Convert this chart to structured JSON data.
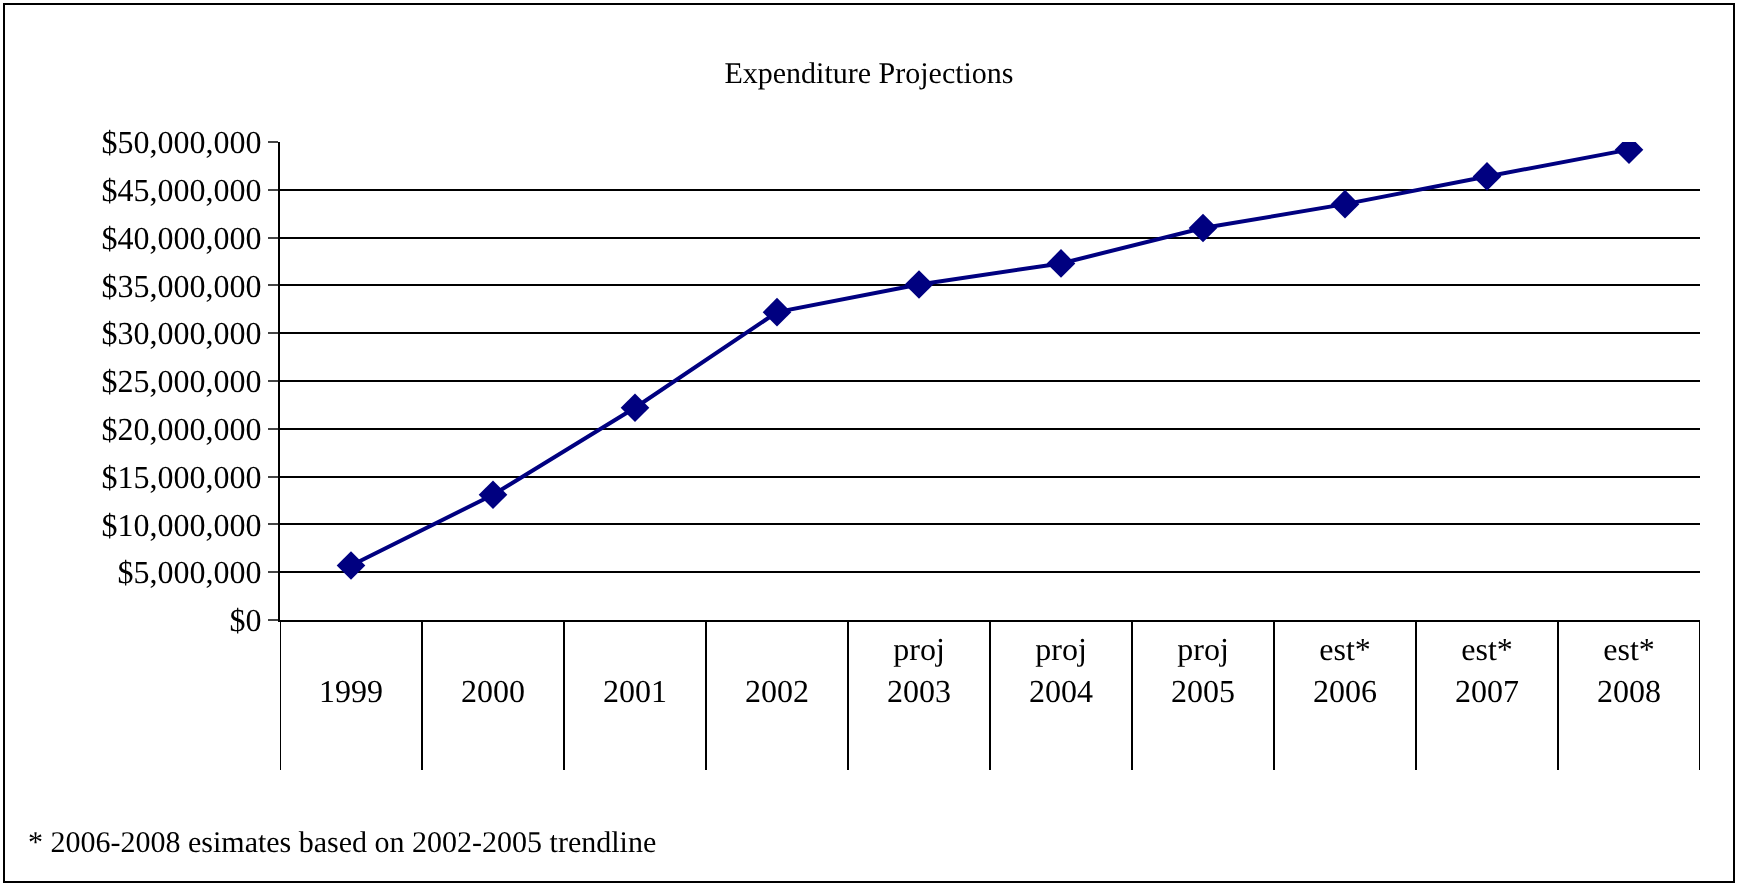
{
  "chart_data": {
    "type": "line",
    "title": "Expenditure Projections",
    "categories": [
      "1999",
      "2000",
      "2001",
      "2002",
      "proj\n2003",
      "proj\n2004",
      "proj\n2005",
      "est*\n2006",
      "est*\n2007",
      "est*\n2008"
    ],
    "series": [
      {
        "color": "#000080",
        "values": [
          5700000,
          13100000,
          22200000,
          32200000,
          35100000,
          37300000,
          41000000,
          43500000,
          46400000,
          49200000
        ]
      }
    ],
    "ylim": [
      0,
      50000000
    ],
    "yticks": [
      {
        "value": 0,
        "label": "$0"
      },
      {
        "value": 5000000,
        "label": "$5,000,000"
      },
      {
        "value": 10000000,
        "label": "$10,000,000"
      },
      {
        "value": 15000000,
        "label": "$15,000,000"
      },
      {
        "value": 20000000,
        "label": "$20,000,000"
      },
      {
        "value": 25000000,
        "label": "$25,000,000"
      },
      {
        "value": 30000000,
        "label": "$30,000,000"
      },
      {
        "value": 35000000,
        "label": "$35,000,000"
      },
      {
        "value": 40000000,
        "label": "$40,000,000"
      },
      {
        "value": 45000000,
        "label": "$45,000,000"
      },
      {
        "value": 50000000,
        "label": "$50,000,000"
      }
    ],
    "grid": "y",
    "marker": "diamond",
    "line_style": "solid",
    "annotations": [
      "* 2006-2008 esimates based on 2002-2005 trendline"
    ]
  }
}
